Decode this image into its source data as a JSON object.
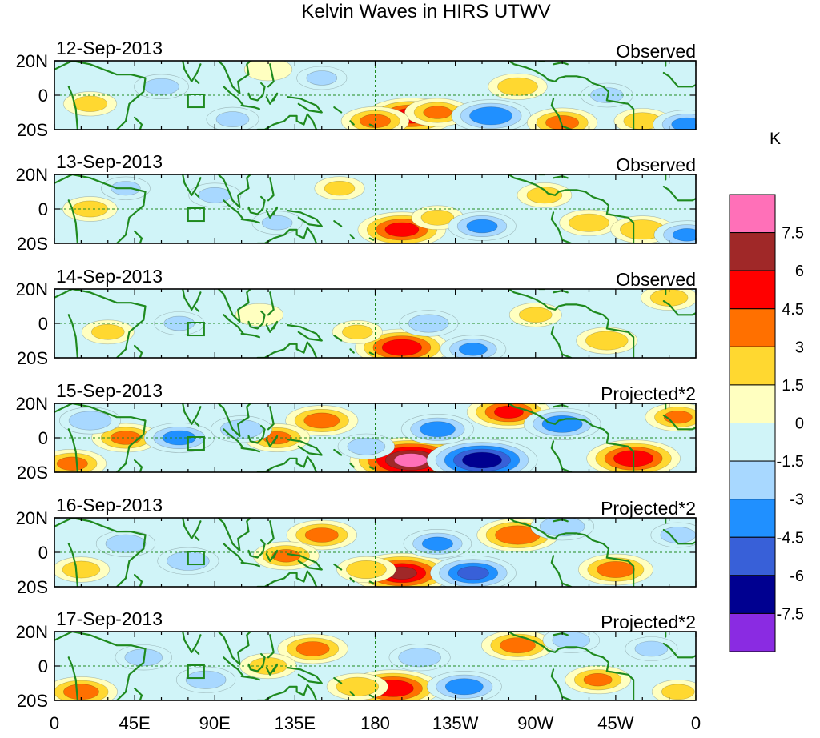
{
  "chart_data": {
    "type": "heatmap",
    "title": "Kelvin Waves in HIRS UTWV",
    "units": "K",
    "x_tick_labels": [
      "0",
      "45E",
      "90E",
      "135E",
      "180",
      "135W",
      "90W",
      "45W",
      "0"
    ],
    "x_ticks_deg": [
      0,
      45,
      90,
      135,
      180,
      225,
      270,
      315,
      360
    ],
    "xlim": [
      0,
      360
    ],
    "y_tick_labels": [
      "20N",
      "0",
      "20S"
    ],
    "y_ticks_deg": [
      20,
      0,
      -20
    ],
    "ylim": [
      -20,
      20
    ],
    "panels": [
      {
        "date": "12-Sep-2013",
        "kind": "Observed"
      },
      {
        "date": "13-Sep-2013",
        "kind": "Observed"
      },
      {
        "date": "14-Sep-2013",
        "kind": "Observed"
      },
      {
        "date": "15-Sep-2013",
        "kind": "Projected*2"
      },
      {
        "date": "16-Sep-2013",
        "kind": "Projected*2"
      },
      {
        "date": "17-Sep-2013",
        "kind": "Projected*2"
      }
    ],
    "colorbar": {
      "levels": [
        7.5,
        6,
        4.5,
        3,
        1.5,
        0,
        -1.5,
        -3,
        -4.5,
        -6,
        -7.5
      ],
      "level_labels": [
        "7.5",
        "6",
        "4.5",
        "3",
        "1.5",
        "0",
        "-1.5",
        "-3",
        "-4.5",
        "-6",
        "-7.5"
      ],
      "colors": [
        "#ff70b8",
        "#a02828",
        "#ff0000",
        "#ff7000",
        "#ffd830",
        "#ffffc0",
        "#d0f4f8",
        "#a8d8ff",
        "#2090ff",
        "#3860d8",
        "#000090",
        "#8a2be2"
      ]
    },
    "anomalies": [
      [
        {
          "lon": 200,
          "lat": -12,
          "v": 5.2
        },
        {
          "lon": 215,
          "lat": -10,
          "v": 3.0
        },
        {
          "lon": 180,
          "lat": -15,
          "v": 3.2
        },
        {
          "lon": 245,
          "lat": -12,
          "v": -4.2
        },
        {
          "lon": 260,
          "lat": 5,
          "v": 2.4
        },
        {
          "lon": 310,
          "lat": 0,
          "v": -1.8
        },
        {
          "lon": 60,
          "lat": 5,
          "v": -2.0
        },
        {
          "lon": 20,
          "lat": -5,
          "v": 1.9
        },
        {
          "lon": 150,
          "lat": 10,
          "v": -1.6
        },
        {
          "lon": 330,
          "lat": -15,
          "v": 2.2
        },
        {
          "lon": 100,
          "lat": -14,
          "v": -1.8
        },
        {
          "lon": 285,
          "lat": -16,
          "v": 3.4
        },
        {
          "lon": 355,
          "lat": -17,
          "v": -3.2
        },
        {
          "lon": 120,
          "lat": 15,
          "v": 1.4
        }
      ],
      [
        {
          "lon": 195,
          "lat": -12,
          "v": 5.0
        },
        {
          "lon": 215,
          "lat": -5,
          "v": 1.8
        },
        {
          "lon": 240,
          "lat": -10,
          "v": -3.2
        },
        {
          "lon": 275,
          "lat": 8,
          "v": 2.0
        },
        {
          "lon": 20,
          "lat": 0,
          "v": 2.0
        },
        {
          "lon": 90,
          "lat": 8,
          "v": -1.8
        },
        {
          "lon": 160,
          "lat": 12,
          "v": 1.6
        },
        {
          "lon": 300,
          "lat": -8,
          "v": 2.4
        },
        {
          "lon": 330,
          "lat": -12,
          "v": 2.8
        },
        {
          "lon": 125,
          "lat": -8,
          "v": -1.6
        },
        {
          "lon": 40,
          "lat": 12,
          "v": -1.5
        },
        {
          "lon": 355,
          "lat": -15,
          "v": -3.0
        }
      ],
      [
        {
          "lon": 195,
          "lat": -14,
          "v": 5.5
        },
        {
          "lon": 235,
          "lat": -15,
          "v": -3.0
        },
        {
          "lon": 170,
          "lat": -5,
          "v": 1.6
        },
        {
          "lon": 270,
          "lat": 5,
          "v": 1.8
        },
        {
          "lon": 310,
          "lat": -10,
          "v": 2.6
        },
        {
          "lon": 70,
          "lat": 0,
          "v": -1.6
        },
        {
          "lon": 30,
          "lat": -5,
          "v": 1.8
        },
        {
          "lon": 115,
          "lat": 5,
          "v": 1.4
        },
        {
          "lon": 210,
          "lat": 0,
          "v": -2.4
        },
        {
          "lon": 345,
          "lat": 15,
          "v": 2.2
        }
      ],
      [
        {
          "lon": 200,
          "lat": -13,
          "v": 8.0
        },
        {
          "lon": 240,
          "lat": -13,
          "v": -7.0
        },
        {
          "lon": 255,
          "lat": 15,
          "v": 4.6
        },
        {
          "lon": 325,
          "lat": -12,
          "v": 5.5
        },
        {
          "lon": 150,
          "lat": 10,
          "v": 3.6
        },
        {
          "lon": 125,
          "lat": 0,
          "v": 3.0
        },
        {
          "lon": 40,
          "lat": 0,
          "v": 3.2
        },
        {
          "lon": 70,
          "lat": 0,
          "v": -3.4
        },
        {
          "lon": 105,
          "lat": 5,
          "v": -2.6
        },
        {
          "lon": 215,
          "lat": 5,
          "v": -3.6
        },
        {
          "lon": 285,
          "lat": 8,
          "v": -4.0
        },
        {
          "lon": 20,
          "lat": 10,
          "v": -2.6
        },
        {
          "lon": 350,
          "lat": 12,
          "v": 3.0
        },
        {
          "lon": 175,
          "lat": -5,
          "v": -2.2
        },
        {
          "lon": 10,
          "lat": -15,
          "v": 3.2
        }
      ],
      [
        {
          "lon": 195,
          "lat": -12,
          "v": 6.2
        },
        {
          "lon": 235,
          "lat": -12,
          "v": -4.8
        },
        {
          "lon": 260,
          "lat": 10,
          "v": 4.4
        },
        {
          "lon": 315,
          "lat": -10,
          "v": 3.8
        },
        {
          "lon": 150,
          "lat": 10,
          "v": 3.4
        },
        {
          "lon": 130,
          "lat": -2,
          "v": 3.0
        },
        {
          "lon": 40,
          "lat": 5,
          "v": -2.4
        },
        {
          "lon": 75,
          "lat": -5,
          "v": -2.6
        },
        {
          "lon": 215,
          "lat": 5,
          "v": -3.2
        },
        {
          "lon": 285,
          "lat": 15,
          "v": -2.8
        },
        {
          "lon": 15,
          "lat": -10,
          "v": 2.2
        },
        {
          "lon": 175,
          "lat": -10,
          "v": 2.4
        },
        {
          "lon": 350,
          "lat": 10,
          "v": -2.0
        }
      ],
      [
        {
          "lon": 190,
          "lat": -13,
          "v": 5.6
        },
        {
          "lon": 230,
          "lat": -12,
          "v": -3.8
        },
        {
          "lon": 260,
          "lat": 12,
          "v": 3.6
        },
        {
          "lon": 305,
          "lat": -8,
          "v": 3.0
        },
        {
          "lon": 145,
          "lat": 10,
          "v": 3.4
        },
        {
          "lon": 120,
          "lat": 0,
          "v": 2.2
        },
        {
          "lon": 50,
          "lat": 5,
          "v": -2.2
        },
        {
          "lon": 85,
          "lat": -8,
          "v": -2.4
        },
        {
          "lon": 205,
          "lat": 5,
          "v": -2.6
        },
        {
          "lon": 290,
          "lat": 15,
          "v": -2.2
        },
        {
          "lon": 15,
          "lat": -15,
          "v": 3.6
        },
        {
          "lon": 170,
          "lat": -12,
          "v": 2.6
        },
        {
          "lon": 335,
          "lat": 10,
          "v": -1.8
        },
        {
          "lon": 350,
          "lat": -15,
          "v": 1.8
        }
      ]
    ]
  }
}
